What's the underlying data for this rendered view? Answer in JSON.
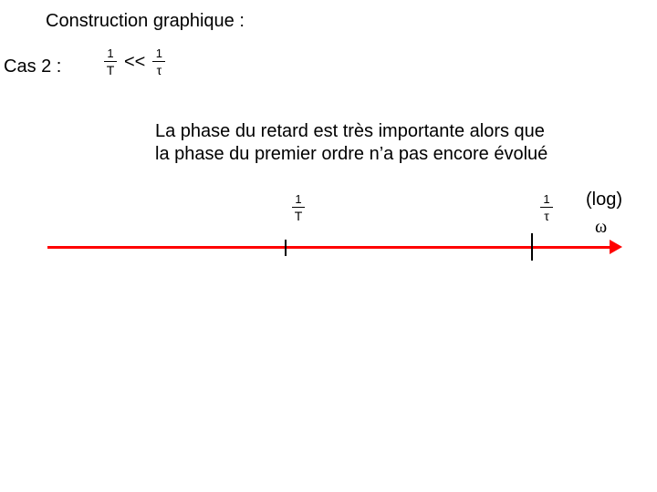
{
  "title": "Construction graphique :",
  "case_label": "Cas 2 :",
  "inequality": {
    "left_num": "1",
    "left_den": "T",
    "cmp": "<<",
    "right_num": "1",
    "right_den": "τ"
  },
  "body_line1": "La phase du retard est très importante alors que",
  "body_line2": "la phase du premier ordre n’a pas encore évolué",
  "diagram": {
    "axis_color": "#ff0000",
    "tick1": {
      "num": "1",
      "den": "T"
    },
    "tick2": {
      "num": "1",
      "den": "τ"
    },
    "log_label": "(log)",
    "omega": "ω"
  }
}
